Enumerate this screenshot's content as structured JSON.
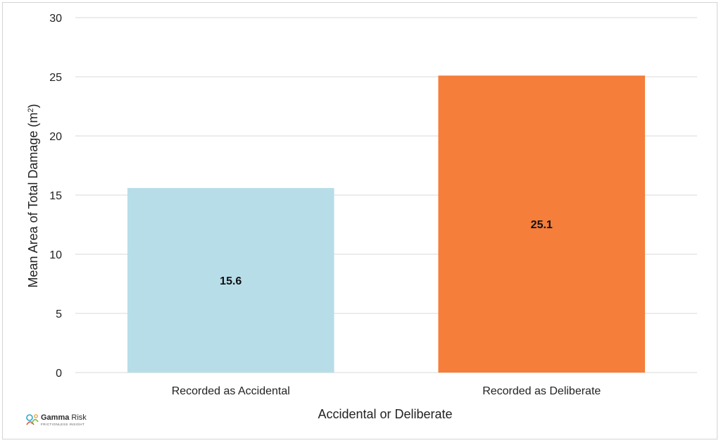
{
  "chart_data": {
    "type": "bar",
    "title": "",
    "xlabel": "Accidental or Deliberate",
    "ylabel": "Mean Area of Total Damage (m",
    "ylabel_superscript": "2",
    "ylabel_suffix": ")",
    "categories": [
      "Recorded as Accidental",
      "Recorded as Deliberate"
    ],
    "values": [
      15.6,
      25.1
    ],
    "data_labels": [
      "15.6",
      "25.1"
    ],
    "colors": [
      "#b7dde9",
      "#f47e3a"
    ],
    "ylim": [
      0,
      30
    ],
    "yticks": [
      0,
      5,
      10,
      15,
      20,
      25,
      30
    ],
    "grid": true,
    "legend": "none"
  },
  "logo": {
    "name_bold": "Gamma",
    "name_rest": " Risk",
    "tagline": "FRICTIONLESS INSIGHT"
  }
}
